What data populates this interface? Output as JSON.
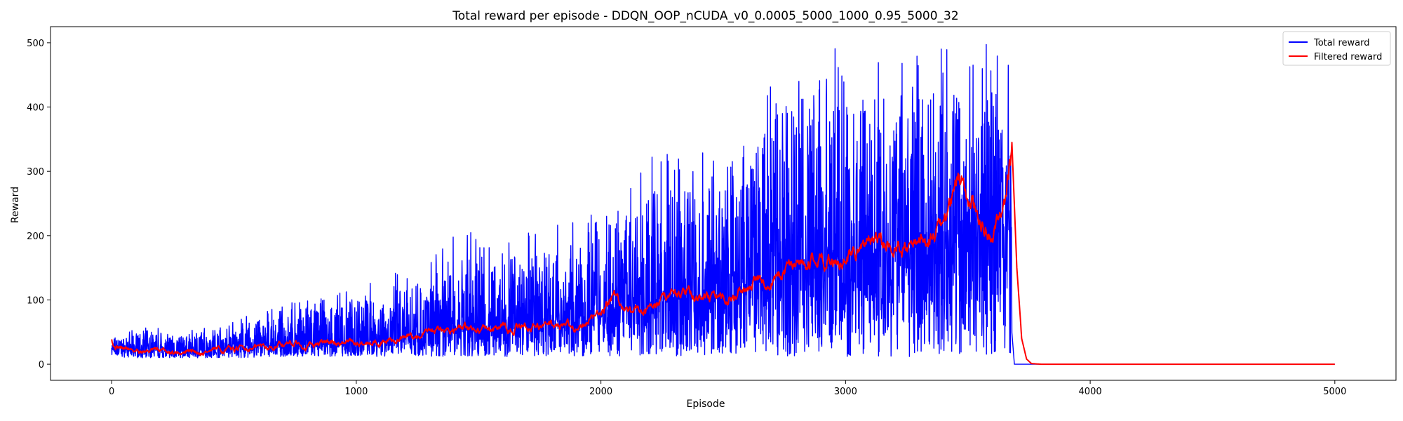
{
  "chart_data": {
    "type": "line",
    "title": "Total reward per episode - DDQN_OOP_nCUDA_v0_0.0005_5000_1000_0.95_5000_32",
    "xlabel": "Episode",
    "ylabel": "Reward",
    "xlim": [
      -250,
      5250
    ],
    "ylim": [
      -25,
      525
    ],
    "xticks": [
      0,
      1000,
      2000,
      3000,
      4000,
      5000
    ],
    "yticks": [
      0,
      100,
      200,
      300,
      400,
      500
    ],
    "grid": false,
    "legend_position": "upper right",
    "series": [
      {
        "name": "Total reward",
        "color": "#0000ff",
        "x": [
          0,
          100,
          200,
          300,
          400,
          500,
          600,
          700,
          800,
          900,
          1000,
          1100,
          1200,
          1300,
          1400,
          1500,
          1600,
          1700,
          1800,
          1900,
          2000,
          2100,
          2200,
          2300,
          2400,
          2500,
          2600,
          2700,
          2800,
          2900,
          3000,
          3100,
          3200,
          3300,
          3400,
          3500,
          3600,
          3680,
          3690,
          5000
        ],
        "y": [
          25,
          22,
          20,
          20,
          22,
          26,
          28,
          30,
          32,
          34,
          34,
          36,
          42,
          48,
          55,
          58,
          60,
          62,
          65,
          68,
          75,
          85,
          92,
          100,
          105,
          112,
          120,
          130,
          140,
          150,
          160,
          165,
          175,
          180,
          190,
          195,
          200,
          210,
          0,
          0
        ],
        "max": [
          40,
          55,
          60,
          50,
          60,
          70,
          80,
          90,
          110,
          110,
          125,
          130,
          150,
          165,
          200,
          210,
          200,
          205,
          215,
          230,
          280,
          265,
          320,
          345,
          330,
          340,
          360,
          500,
          500,
          500,
          500,
          500,
          500,
          500,
          500,
          500,
          500,
          500,
          0,
          0
        ],
        "min": [
          12,
          10,
          10,
          10,
          10,
          10,
          10,
          12,
          12,
          12,
          12,
          12,
          12,
          12,
          12,
          12,
          12,
          12,
          12,
          12,
          12,
          12,
          12,
          12,
          12,
          12,
          12,
          12,
          12,
          12,
          12,
          12,
          12,
          12,
          12,
          12,
          12,
          12,
          0,
          0
        ]
      },
      {
        "name": "Filtered reward",
        "color": "#ff0000",
        "x": [
          0,
          10,
          50,
          100,
          200,
          300,
          400,
          500,
          600,
          700,
          800,
          900,
          1000,
          1100,
          1200,
          1300,
          1400,
          1500,
          1600,
          1700,
          1800,
          1900,
          2000,
          2050,
          2100,
          2200,
          2300,
          2400,
          2500,
          2600,
          2700,
          2800,
          2900,
          3000,
          3100,
          3200,
          3300,
          3400,
          3480,
          3550,
          3600,
          3650,
          3680,
          3700,
          3720,
          3740,
          3760,
          3800,
          5000
        ],
        "y": [
          42,
          30,
          25,
          22,
          20,
          19,
          20,
          23,
          27,
          30,
          32,
          33,
          34,
          35,
          40,
          48,
          55,
          55,
          55,
          58,
          62,
          58,
          75,
          110,
          80,
          85,
          115,
          105,
          100,
          115,
          135,
          155,
          165,
          160,
          195,
          180,
          190,
          215,
          300,
          230,
          205,
          240,
          345,
          150,
          40,
          8,
          1,
          0,
          0
        ]
      }
    ]
  }
}
